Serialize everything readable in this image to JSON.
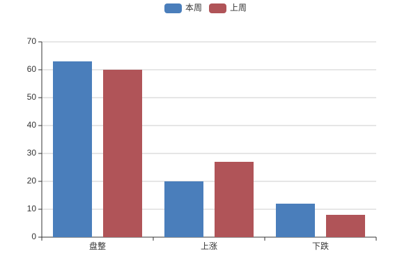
{
  "chart_data": {
    "type": "bar",
    "categories": [
      "盘整",
      "上涨",
      "下跌"
    ],
    "series": [
      {
        "name": "本周",
        "color": "#4a7ebb",
        "values": [
          63,
          20,
          12
        ]
      },
      {
        "name": "上周",
        "color": "#b05458",
        "values": [
          60,
          27,
          8
        ]
      }
    ],
    "ylim": [
      0,
      70
    ],
    "yticks": [
      0,
      10,
      20,
      30,
      40,
      50,
      60,
      70
    ],
    "grid": true,
    "legend": "top"
  }
}
